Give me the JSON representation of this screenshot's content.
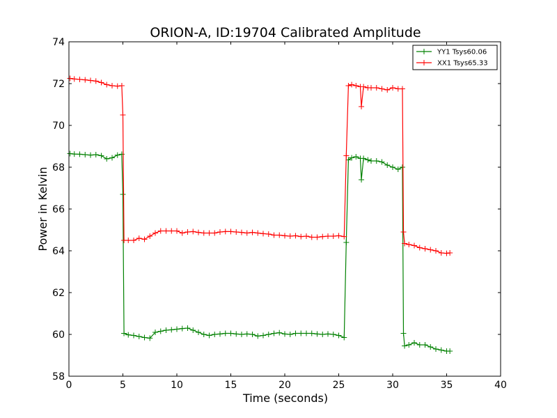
{
  "chart_data": {
    "type": "line",
    "title": "ORION-A, ID:19704 Calibrated Amplitude",
    "xlabel": "Time (seconds)",
    "ylabel": "Power in Kelvin",
    "xlim": [
      0,
      40
    ],
    "ylim": [
      58,
      74
    ],
    "xticks": [
      0,
      5,
      10,
      15,
      20,
      25,
      30,
      35,
      40
    ],
    "yticks": [
      58,
      60,
      62,
      64,
      66,
      68,
      70,
      72,
      74
    ],
    "grid": false,
    "legend_position": "top-right",
    "marker": "+",
    "series": [
      {
        "name": "YY1 Tsys60.06",
        "color": "#008000",
        "points": [
          [
            0.1,
            68.65
          ],
          [
            0.5,
            68.63
          ],
          [
            1.0,
            68.62
          ],
          [
            1.5,
            68.6
          ],
          [
            2.0,
            68.58
          ],
          [
            2.5,
            68.6
          ],
          [
            3.0,
            68.55
          ],
          [
            3.5,
            68.4
          ],
          [
            4.0,
            68.45
          ],
          [
            4.5,
            68.58
          ],
          [
            4.9,
            68.62
          ],
          [
            5.0,
            66.7
          ],
          [
            5.1,
            60.05
          ],
          [
            5.5,
            59.98
          ],
          [
            6.0,
            59.95
          ],
          [
            6.5,
            59.9
          ],
          [
            7.0,
            59.85
          ],
          [
            7.5,
            59.82
          ],
          [
            8.0,
            60.1
          ],
          [
            8.5,
            60.15
          ],
          [
            9.0,
            60.2
          ],
          [
            9.5,
            60.22
          ],
          [
            10.0,
            60.25
          ],
          [
            10.5,
            60.28
          ],
          [
            11.0,
            60.3
          ],
          [
            11.5,
            60.2
          ],
          [
            12.0,
            60.1
          ],
          [
            12.5,
            60.0
          ],
          [
            13.0,
            59.95
          ],
          [
            13.5,
            60.0
          ],
          [
            14.0,
            60.02
          ],
          [
            14.5,
            60.05
          ],
          [
            15.0,
            60.05
          ],
          [
            15.5,
            60.02
          ],
          [
            16.0,
            60.0
          ],
          [
            16.5,
            60.02
          ],
          [
            17.0,
            60.0
          ],
          [
            17.5,
            59.92
          ],
          [
            18.0,
            59.95
          ],
          [
            18.5,
            60.0
          ],
          [
            19.0,
            60.05
          ],
          [
            19.5,
            60.08
          ],
          [
            20.0,
            60.02
          ],
          [
            20.5,
            60.0
          ],
          [
            21.0,
            60.05
          ],
          [
            21.5,
            60.05
          ],
          [
            22.0,
            60.05
          ],
          [
            22.5,
            60.05
          ],
          [
            23.0,
            60.02
          ],
          [
            23.5,
            60.0
          ],
          [
            24.0,
            60.02
          ],
          [
            24.5,
            60.0
          ],
          [
            25.0,
            59.95
          ],
          [
            25.5,
            59.85
          ],
          [
            25.7,
            64.4
          ],
          [
            25.9,
            68.35
          ],
          [
            26.2,
            68.45
          ],
          [
            26.6,
            68.5
          ],
          [
            27.0,
            68.42
          ],
          [
            27.1,
            67.4
          ],
          [
            27.3,
            68.42
          ],
          [
            27.7,
            68.35
          ],
          [
            28.0,
            68.3
          ],
          [
            28.5,
            68.3
          ],
          [
            29.0,
            68.25
          ],
          [
            29.5,
            68.1
          ],
          [
            30.0,
            68.0
          ],
          [
            30.5,
            67.9
          ],
          [
            30.9,
            68.0
          ],
          [
            31.0,
            60.05
          ],
          [
            31.1,
            59.45
          ],
          [
            31.5,
            59.5
          ],
          [
            32.0,
            59.6
          ],
          [
            32.5,
            59.5
          ],
          [
            33.0,
            59.5
          ],
          [
            33.5,
            59.4
          ],
          [
            34.0,
            59.3
          ],
          [
            34.5,
            59.25
          ],
          [
            35.0,
            59.2
          ],
          [
            35.3,
            59.2
          ]
        ]
      },
      {
        "name": "XX1 Tsys65.33",
        "color": "#ff0000",
        "points": [
          [
            0.1,
            72.25
          ],
          [
            0.5,
            72.22
          ],
          [
            1.0,
            72.2
          ],
          [
            1.5,
            72.18
          ],
          [
            2.0,
            72.15
          ],
          [
            2.5,
            72.12
          ],
          [
            3.0,
            72.05
          ],
          [
            3.5,
            71.95
          ],
          [
            4.0,
            71.9
          ],
          [
            4.5,
            71.88
          ],
          [
            4.9,
            71.9
          ],
          [
            5.0,
            70.5
          ],
          [
            5.1,
            64.5
          ],
          [
            5.5,
            64.5
          ],
          [
            6.0,
            64.5
          ],
          [
            6.5,
            64.6
          ],
          [
            7.0,
            64.55
          ],
          [
            7.5,
            64.7
          ],
          [
            8.0,
            64.85
          ],
          [
            8.5,
            64.95
          ],
          [
            9.0,
            64.95
          ],
          [
            9.5,
            64.95
          ],
          [
            10.0,
            64.95
          ],
          [
            10.5,
            64.85
          ],
          [
            11.0,
            64.9
          ],
          [
            11.5,
            64.92
          ],
          [
            12.0,
            64.88
          ],
          [
            12.5,
            64.85
          ],
          [
            13.0,
            64.85
          ],
          [
            13.5,
            64.85
          ],
          [
            14.0,
            64.9
          ],
          [
            14.5,
            64.92
          ],
          [
            15.0,
            64.92
          ],
          [
            15.5,
            64.9
          ],
          [
            16.0,
            64.88
          ],
          [
            16.5,
            64.85
          ],
          [
            17.0,
            64.88
          ],
          [
            17.5,
            64.85
          ],
          [
            18.0,
            64.82
          ],
          [
            18.5,
            64.8
          ],
          [
            19.0,
            64.75
          ],
          [
            19.5,
            64.75
          ],
          [
            20.0,
            64.72
          ],
          [
            20.5,
            64.7
          ],
          [
            21.0,
            64.72
          ],
          [
            21.5,
            64.68
          ],
          [
            22.0,
            64.7
          ],
          [
            22.5,
            64.65
          ],
          [
            23.0,
            64.65
          ],
          [
            23.5,
            64.68
          ],
          [
            24.0,
            64.7
          ],
          [
            24.5,
            64.7
          ],
          [
            25.0,
            64.72
          ],
          [
            25.5,
            64.68
          ],
          [
            25.7,
            68.55
          ],
          [
            25.9,
            71.9
          ],
          [
            26.2,
            71.95
          ],
          [
            26.6,
            71.9
          ],
          [
            27.0,
            71.85
          ],
          [
            27.1,
            70.9
          ],
          [
            27.3,
            71.85
          ],
          [
            27.7,
            71.8
          ],
          [
            28.0,
            71.8
          ],
          [
            28.5,
            71.8
          ],
          [
            29.0,
            71.75
          ],
          [
            29.5,
            71.7
          ],
          [
            30.0,
            71.8
          ],
          [
            30.5,
            71.75
          ],
          [
            30.9,
            71.75
          ],
          [
            31.0,
            64.9
          ],
          [
            31.1,
            64.35
          ],
          [
            31.5,
            64.3
          ],
          [
            32.0,
            64.25
          ],
          [
            32.5,
            64.15
          ],
          [
            33.0,
            64.1
          ],
          [
            33.5,
            64.05
          ],
          [
            34.0,
            64.0
          ],
          [
            34.5,
            63.9
          ],
          [
            35.0,
            63.88
          ],
          [
            35.3,
            63.9
          ]
        ]
      }
    ]
  }
}
